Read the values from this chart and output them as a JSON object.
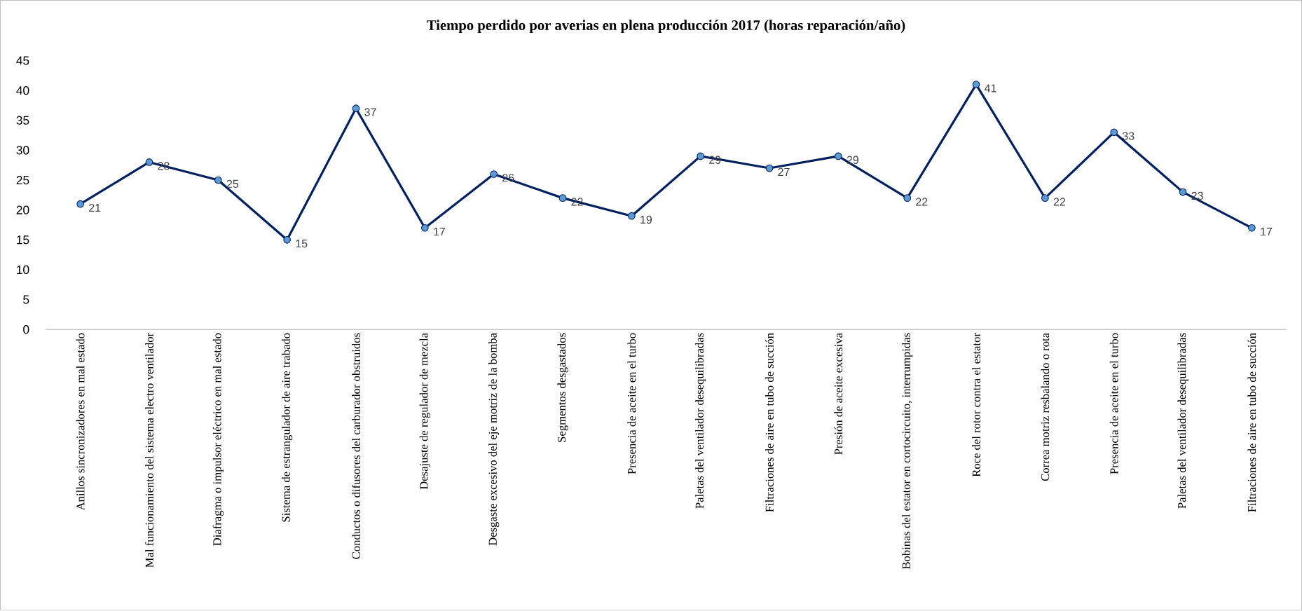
{
  "chart_data": {
    "type": "line",
    "title": "Tiempo perdido por averias en plena producción 2017 (horas reparación/año)",
    "categories": [
      "Anillos sincronizadores en mal estado",
      "Mal funcionamiento del sistema electro ventilador",
      "Diafragma o impulsor eléctrico en mal estado",
      "Sistema de estrangulador de aire trabado",
      "Conductos o difusores del carburador obstruidos",
      "Desajuste de regulador de mezcla",
      "Desgaste excesivo del eje motriz de la bomba",
      "Segmentos desgastados",
      "Presencia de aceite en el turbo",
      "Paletas del ventilador desequilibradas",
      "Filtraciones de aire en tubo de succión",
      "Presión de aceite excesiva",
      "Bobinas del estator en cortocircuito, interrumpidas",
      "Roce del rotor contra el estator",
      "Correa motriz resbalando o rota",
      "Presencia de aceite en el turbo",
      "Paletas del ventilador desequilibradas",
      "Filtraciones de aire en tubo de succión"
    ],
    "values": [
      21,
      28,
      25,
      15,
      37,
      17,
      26,
      22,
      19,
      29,
      27,
      29,
      22,
      41,
      22,
      33,
      23,
      17
    ],
    "color": "#002060",
    "marker": "circle",
    "data_labels": true,
    "ylim": [
      0,
      45
    ],
    "yticks": [
      0,
      5,
      10,
      15,
      20,
      25,
      30,
      35,
      40,
      45
    ]
  }
}
